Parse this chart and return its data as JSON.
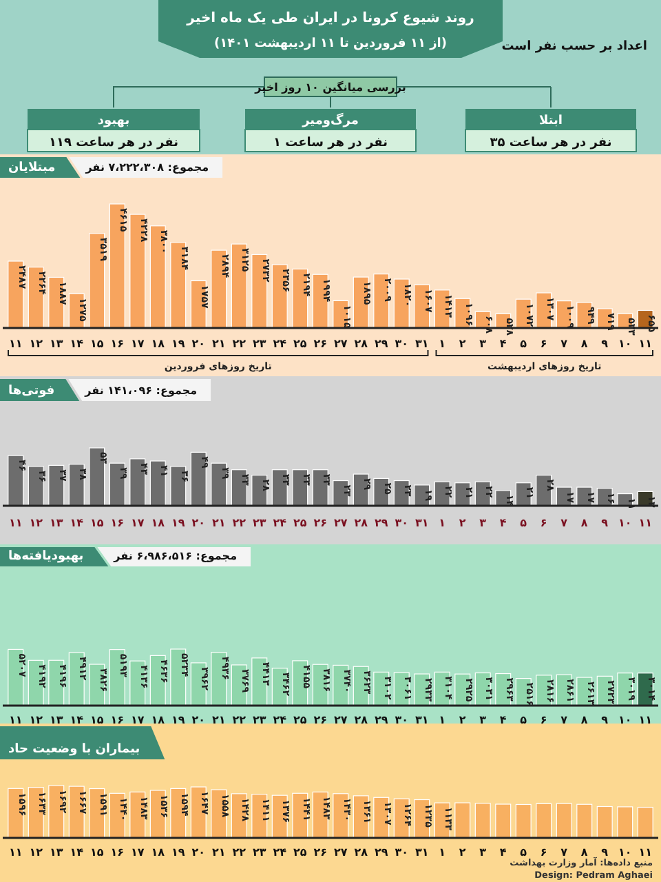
{
  "chart_data": [
    {
      "type": "other",
      "title": "روند شیوع کرونا در ایران طی یک ماه اخیر",
      "subtitle": "(از ۱۱ فروردین تا ۱۱ اردیبهشت ۱۴۰۱)",
      "annotations": [
        "اعداد بر حسب نفر است",
        "بررسی میانگین ۱۰ روز اخیر"
      ],
      "categories": [
        "بهبود",
        "مرگ‌ومیر",
        "ابتلا"
      ],
      "values": [
        119,
        1,
        35
      ],
      "value_labels": [
        "۱۱۹ نفر در هر ساعت",
        "۱ نفر در هر ساعت",
        "۳۵ نفر در هر ساعت"
      ]
    },
    {
      "type": "bar",
      "title": "مبتلایان",
      "subtitle": "مجموع: ۷،۲۲۲،۳۰۸ نفر",
      "annotations": [
        "تاریخ روزهای فروردین",
        "تاریخ روزهای اردیبهشت"
      ],
      "categories": [
        "۱۱",
        "۱۲",
        "۱۳",
        "۱۴",
        "۱۵",
        "۱۶",
        "۱۷",
        "۱۸",
        "۱۹",
        "۲۰",
        "۲۱",
        "۲۲",
        "۲۳",
        "۲۴",
        "۲۵",
        "۲۶",
        "۲۷",
        "۲۸",
        "۲۹",
        "۳۰",
        "۳۱",
        "۱",
        "۲",
        "۳",
        "۴",
        "۵",
        "۶",
        "۷",
        "۸",
        "۹",
        "۱۰",
        "۱۱"
      ],
      "values": [
        2487,
        2264,
        1887,
        1275,
        3519,
        4615,
        4228,
        3800,
        3184,
        1757,
        2894,
        3125,
        2732,
        2356,
        2194,
        1994,
        1015,
        1895,
        2009,
        1820,
        1607,
        1413,
        1096,
        608,
        528,
        1072,
        1307,
        1009,
        949,
        719,
        533,
        655
      ],
      "value_labels": [
        "۲۴۸۷",
        "۲۲۶۴",
        "۱۸۸۷",
        "۱۲۷۵",
        "۳۵۱۹",
        "۴۶۱۵",
        "۴۲۲۸",
        "۳۸۰۰",
        "۳۱۸۴",
        "۱۷۵۷",
        "۲۸۹۴",
        "۳۱۲۵",
        "۲۷۳۲",
        "۲۳۵۶",
        "۲۱۹۴",
        "۱۹۹۴",
        "۱۰۱۵",
        "۱۸۹۵",
        "۲۰۰۹",
        "۱۸۲۰",
        "۱۶۰۷",
        "۱۴۱۳",
        "۱۰۹۶",
        "۶۰۸",
        "۵۲۸",
        "۱۰۷۲",
        "۱۳۰۷",
        "۱۰۰۹",
        "۹۴۹",
        "۷۱۹",
        "۵۳۳",
        "۶۵۵"
      ],
      "colors": [
        "#f7a45e",
        "#f7a45e",
        "#f7a45e",
        "#f7a45e",
        "#f7a45e",
        "#f7a45e",
        "#f7a45e",
        "#f7a45e",
        "#f7a45e",
        "#f7a45e",
        "#f7a45e",
        "#f7a45e",
        "#f7a45e",
        "#f7a45e",
        "#f7a45e",
        "#f7a45e",
        "#f7a45e",
        "#f7a45e",
        "#f7a45e",
        "#f7a45e",
        "#f7a45e",
        "#f7a45e",
        "#f7a45e",
        "#f7a45e",
        "#f7a45e",
        "#f7a45e",
        "#f7a45e",
        "#f7a45e",
        "#f7a45e",
        "#f7a45e",
        "#f7a45e",
        "#b5651d"
      ]
    },
    {
      "type": "bar",
      "title": "فوتی‌ها",
      "subtitle": "مجموع: ۱۴۱،۰۹۶ نفر",
      "categories": [
        "۱۱",
        "۱۲",
        "۱۳",
        "۱۴",
        "۱۵",
        "۱۶",
        "۱۷",
        "۱۸",
        "۱۹",
        "۲۰",
        "۲۱",
        "۲۲",
        "۲۳",
        "۲۴",
        "۲۵",
        "۲۶",
        "۲۷",
        "۲۸",
        "۲۹",
        "۳۰",
        "۳۱",
        "۱",
        "۲",
        "۳",
        "۴",
        "۵",
        "۶",
        "۷",
        "۸",
        "۹",
        "۱۰",
        "۱۱"
      ],
      "values": [
        46,
        36,
        37,
        38,
        53,
        39,
        43,
        41,
        36,
        49,
        39,
        33,
        28,
        33,
        33,
        33,
        23,
        29,
        25,
        23,
        19,
        22,
        21,
        22,
        14,
        21,
        28,
        17,
        17,
        16,
        11,
        13
      ],
      "value_labels": [
        "۴۶",
        "۳۶",
        "۳۷",
        "۳۸",
        "۵۳",
        "۳۹",
        "۴۳",
        "۴۱",
        "۳۶",
        "۴۹",
        "۳۹",
        "۳۳",
        "۲۸",
        "۳۳",
        "۳۳",
        "۳۳",
        "۲۳",
        "۲۹",
        "۲۵",
        "۲۳",
        "۱۹",
        "۲۲",
        "۲۱",
        "۲۲",
        "۱۴",
        "۲۱",
        "۲۸",
        "۱۷",
        "۱۷",
        "۱۶",
        "۱۱",
        "۱۳"
      ],
      "colors": [
        "#6d6d6d",
        "#6d6d6d",
        "#6d6d6d",
        "#6d6d6d",
        "#6d6d6d",
        "#6d6d6d",
        "#6d6d6d",
        "#6d6d6d",
        "#6d6d6d",
        "#6d6d6d",
        "#6d6d6d",
        "#6d6d6d",
        "#6d6d6d",
        "#6d6d6d",
        "#6d6d6d",
        "#6d6d6d",
        "#6d6d6d",
        "#6d6d6d",
        "#6d6d6d",
        "#6d6d6d",
        "#6d6d6d",
        "#6d6d6d",
        "#6d6d6d",
        "#6d6d6d",
        "#6d6d6d",
        "#6d6d6d",
        "#6d6d6d",
        "#6d6d6d",
        "#6d6d6d",
        "#6d6d6d",
        "#6d6d6d",
        "#3a3a2a"
      ]
    },
    {
      "type": "bar",
      "title": "بهبودیافته‌ها",
      "subtitle": "مجموع: ۶،۹۸۶،۵۱۶ نفر",
      "categories": [
        "۱۱",
        "۱۲",
        "۱۳",
        "۱۴",
        "۱۵",
        "۱۶",
        "۱۷",
        "۱۸",
        "۱۹",
        "۲۰",
        "۲۱",
        "۲۲",
        "۲۳",
        "۲۴",
        "۲۵",
        "۲۶",
        "۲۷",
        "۲۸",
        "۲۹",
        "۳۰",
        "۳۱",
        "۱",
        "۲",
        "۳",
        "۴",
        "۵",
        "۶",
        "۷",
        "۸",
        "۹",
        "۱۰",
        "۱۱"
      ],
      "values": [
        5207,
        4192,
        4196,
        4912,
        3826,
        5193,
        4136,
        4636,
        5234,
        3962,
        4936,
        3769,
        4413,
        3462,
        4155,
        3816,
        3740,
        3623,
        3102,
        3061,
        2933,
        3104,
        2925,
        3031,
        2963,
        2516,
        2816,
        2861,
        2613,
        2723,
        3019,
        3014
      ],
      "value_labels": [
        "۵۲۰۷",
        "۴۱۹۲",
        "۴۱۹۶",
        "۴۹۱۲",
        "۳۸۲۶",
        "۵۱۹۳",
        "۴۱۳۶",
        "۴۶۳۶",
        "۵۲۳۴",
        "۳۹۶۲",
        "۴۹۳۶",
        "۳۷۶۹",
        "۴۴۱۳",
        "۳۴۶۲",
        "۴۱۵۵",
        "۳۸۱۶",
        "۳۷۴۰",
        "۳۶۲۳",
        "۳۱۰۲",
        "۳۰۶۱",
        "۲۹۳۳",
        "۳۱۰۴",
        "۲۹۲۵",
        "۳۰۳۱",
        "۲۹۶۳",
        "۲۵۱۶",
        "۲۸۱۶",
        "۲۸۶۱",
        "۲۶۱۳",
        "۲۷۲۳",
        "۳۰۱۹",
        "۳۰۱۴"
      ],
      "colors": [
        "#8fd6ab",
        "#8fd6ab",
        "#8fd6ab",
        "#8fd6ab",
        "#8fd6ab",
        "#8fd6ab",
        "#8fd6ab",
        "#8fd6ab",
        "#8fd6ab",
        "#8fd6ab",
        "#8fd6ab",
        "#8fd6ab",
        "#8fd6ab",
        "#8fd6ab",
        "#8fd6ab",
        "#8fd6ab",
        "#8fd6ab",
        "#8fd6ab",
        "#8fd6ab",
        "#8fd6ab",
        "#8fd6ab",
        "#8fd6ab",
        "#8fd6ab",
        "#8fd6ab",
        "#8fd6ab",
        "#8fd6ab",
        "#8fd6ab",
        "#8fd6ab",
        "#8fd6ab",
        "#8fd6ab",
        "#8fd6ab",
        "#2f6a4c"
      ]
    },
    {
      "type": "bar",
      "title": "بیماران با وضعیت حاد",
      "annotations": [
        "منبع داده‌ها: آمار وزارت بهداشت",
        "Design: Pedram Aghaei"
      ],
      "categories": [
        "۱۱",
        "۱۲",
        "۱۳",
        "۱۴",
        "۱۵",
        "۱۶",
        "۱۷",
        "۱۸",
        "۱۹",
        "۲۰",
        "۲۱",
        "۲۲",
        "۲۳",
        "۲۴",
        "۲۵",
        "۲۶",
        "۲۷",
        "۲۸",
        "۲۹",
        "۳۰",
        "۳۱",
        "۱",
        "۲",
        "۳",
        "۴",
        "۵",
        "۶",
        "۷",
        "۸",
        "۹",
        "۱۰",
        "۱۱"
      ],
      "values": [
        1596,
        1633,
        1692,
        1667,
        1591,
        1440,
        1483,
        1536,
        1594,
        1647,
        1558,
        1428,
        1411,
        1376,
        1441,
        1483,
        1430,
        1361,
        1307,
        1264,
        1235,
        1133,
        1134,
        1117,
        1090,
        1080,
        1105,
        1110,
        1085,
        1013,
        1004,
        990
      ],
      "value_labels": [
        "۱۵۹۶",
        "۱۶۳۳",
        "۱۶۹۲",
        "۱۶۶۷",
        "۱۵۹۱",
        "۱۴۴۰",
        "۱۴۸۳",
        "۱۵۳۶",
        "۱۵۹۴",
        "۱۶۴۷",
        "۱۵۵۸",
        "۱۴۲۸",
        "۱۴۱۱",
        "۱۳۷۶",
        "۱۴۴۱",
        "۱۴۸۳",
        "۱۴۳۰",
        "۱۳۶۱",
        "۱۳۰۷",
        "۱۲۶۴",
        "۱۲۳۵",
        "۱۱۳۳",
        null,
        null,
        null,
        null,
        null,
        null,
        null,
        null,
        null,
        null
      ],
      "colors": [
        "#f8b061",
        "#f8b061",
        "#f8b061",
        "#f8b061",
        "#f8b061",
        "#f8b061",
        "#f8b061",
        "#f8b061",
        "#f8b061",
        "#f8b061",
        "#f8b061",
        "#f8b061",
        "#f8b061",
        "#f8b061",
        "#f8b061",
        "#f8b061",
        "#f8b061",
        "#f8b061",
        "#f8b061",
        "#f8b061",
        "#f8b061",
        "#f8b061",
        "#f8b061",
        "#f8b061",
        "#f8b061",
        "#f8b061",
        "#f8b061",
        "#f8b061",
        "#f8b061",
        "#f8b061",
        "#f8b061",
        "#f8b061"
      ]
    }
  ]
}
